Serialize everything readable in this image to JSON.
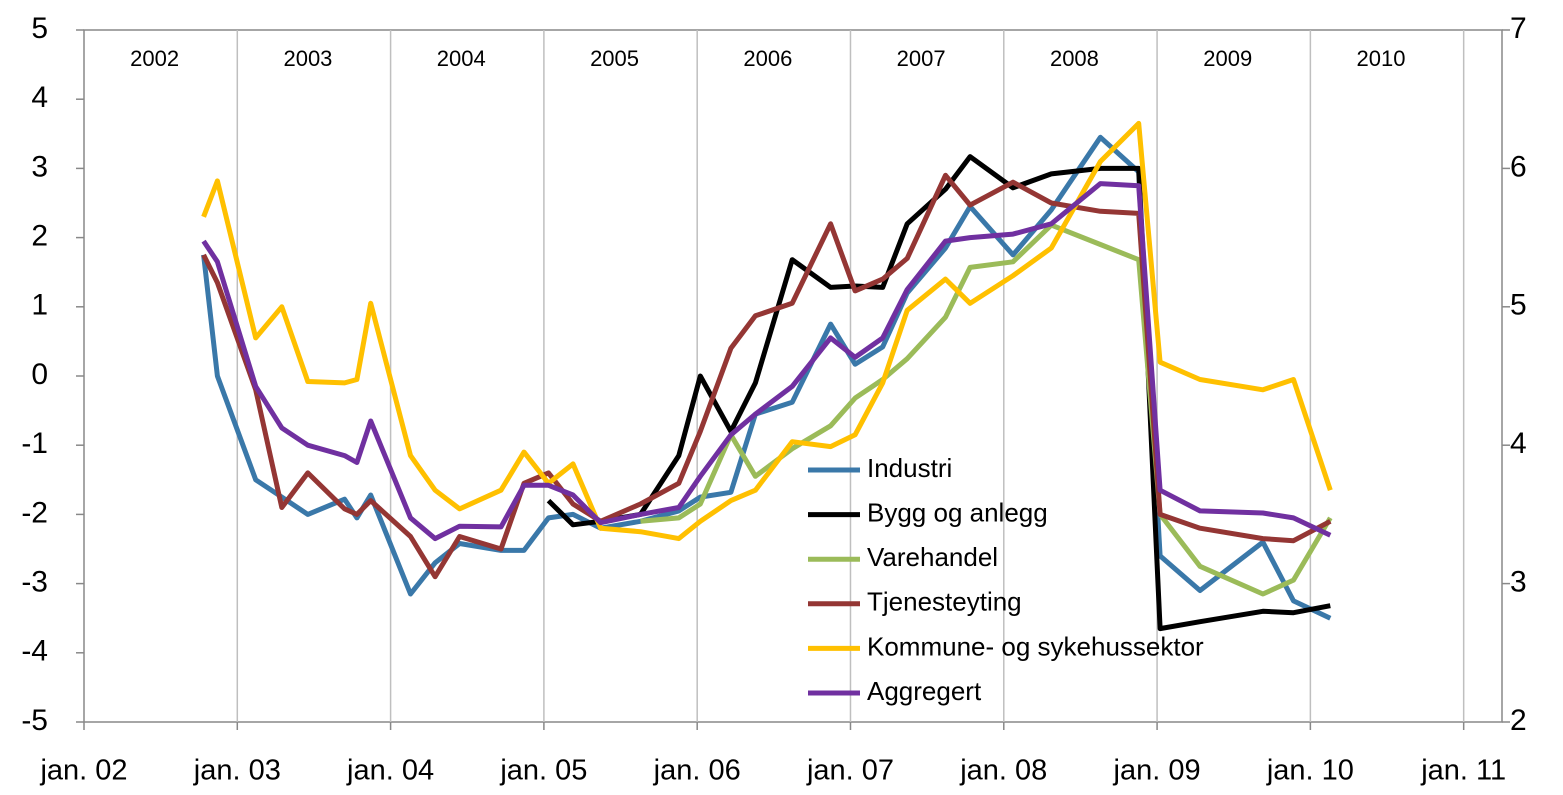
{
  "chart_data": {
    "type": "line",
    "x": [
      2002.78,
      2002.87,
      2003.12,
      2003.29,
      2003.46,
      2003.7,
      2003.78,
      2003.87,
      2004.13,
      2004.29,
      2004.45,
      2004.72,
      2004.87,
      2005.03,
      2005.19,
      2005.37,
      2005.63,
      2005.88,
      2006.02,
      2006.22,
      2006.38,
      2006.62,
      2006.87,
      2007.03,
      2007.21,
      2007.37,
      2007.62,
      2007.78,
      2008.06,
      2008.31,
      2008.63,
      2008.88,
      2009.02,
      2009.28,
      2009.69,
      2009.89,
      2010.13
    ],
    "series": [
      {
        "name": "Industri",
        "color": "#3a78a9",
        "values": [
          1.75,
          0,
          -1.5,
          -1.75,
          -2.0,
          -1.78,
          -2.05,
          -1.72,
          -3.15,
          -2.7,
          -2.42,
          -2.52,
          -2.52,
          -2.05,
          -2.0,
          -2.2,
          -2.1,
          -1.95,
          -1.75,
          -1.68,
          -0.55,
          -0.38,
          0.75,
          0.17,
          0.42,
          1.2,
          1.85,
          2.45,
          1.75,
          2.4,
          3.45,
          2.95,
          -2.6,
          -3.1,
          -2.4,
          -3.25,
          -3.5
        ]
      },
      {
        "name": "Bygg og anlegg",
        "color": "#000000",
        "values": [
          null,
          null,
          null,
          null,
          null,
          null,
          null,
          null,
          null,
          null,
          null,
          null,
          null,
          -1.8,
          -2.15,
          -2.1,
          -2.0,
          -1.15,
          0.0,
          -0.8,
          -0.1,
          1.68,
          1.28,
          1.3,
          1.28,
          2.2,
          2.7,
          3.17,
          2.72,
          2.92,
          3.0,
          3.0,
          -3.65,
          -3.55,
          -3.4,
          -3.42,
          -3.32
        ]
      },
      {
        "name": "Varehandel",
        "color": "#9bbb59",
        "values": [
          null,
          null,
          null,
          null,
          null,
          null,
          null,
          null,
          null,
          null,
          null,
          null,
          null,
          null,
          null,
          null,
          -2.1,
          -2.05,
          -1.85,
          -0.85,
          -1.45,
          -1.05,
          -0.72,
          -0.32,
          -0.05,
          0.25,
          0.85,
          1.57,
          1.65,
          2.18,
          1.9,
          1.68,
          -2.0,
          -2.75,
          -3.15,
          -2.95,
          -2.05
        ]
      },
      {
        "name": "Tjenesteyting",
        "color": "#943634",
        "values": [
          1.75,
          1.35,
          -0.2,
          -1.9,
          -1.4,
          -1.92,
          -2.0,
          -1.8,
          -2.32,
          -2.9,
          -2.32,
          -2.5,
          -1.55,
          -1.4,
          -1.85,
          -2.1,
          -1.85,
          -1.55,
          -0.8,
          0.4,
          0.87,
          1.05,
          2.2,
          1.23,
          1.4,
          1.7,
          2.9,
          2.47,
          2.8,
          2.5,
          2.38,
          2.35,
          -2.0,
          -2.2,
          -2.35,
          -2.38,
          -2.1
        ]
      },
      {
        "name": "Kommune- og sykehussektor",
        "color": "#ffc000",
        "values": [
          2.3,
          2.82,
          0.55,
          1.0,
          -0.08,
          -0.1,
          -0.05,
          1.05,
          -1.15,
          -1.65,
          -1.92,
          -1.65,
          -1.1,
          -1.55,
          -1.27,
          -2.2,
          -2.25,
          -2.35,
          -2.1,
          -1.8,
          -1.65,
          -0.95,
          -1.02,
          -0.85,
          -0.1,
          0.95,
          1.4,
          1.05,
          1.45,
          1.85,
          3.1,
          3.65,
          0.2,
          -0.05,
          -0.2,
          -0.05,
          -1.65
        ]
      },
      {
        "name": "Aggregert",
        "color": "#7030a0",
        "values": [
          1.95,
          1.65,
          -0.15,
          -0.75,
          -1.0,
          -1.15,
          -1.25,
          -0.65,
          -2.05,
          -2.35,
          -2.17,
          -2.18,
          -1.58,
          -1.58,
          -1.72,
          -2.12,
          -2.0,
          -1.9,
          -1.45,
          -0.85,
          -0.55,
          -0.15,
          0.55,
          0.27,
          0.55,
          1.25,
          1.95,
          2.0,
          2.05,
          2.2,
          2.78,
          2.75,
          -1.65,
          -1.95,
          -1.98,
          -2.05,
          -2.3
        ]
      }
    ],
    "xlim": [
      2002,
      2011.25
    ],
    "xticks": [
      {
        "value": 2002,
        "label": "jan. 02"
      },
      {
        "value": 2003,
        "label": "jan. 03"
      },
      {
        "value": 2004,
        "label": "jan. 04"
      },
      {
        "value": 2005,
        "label": "jan. 05"
      },
      {
        "value": 2006,
        "label": "jan. 06"
      },
      {
        "value": 2007,
        "label": "jan. 07"
      },
      {
        "value": 2008,
        "label": "jan. 08"
      },
      {
        "value": 2009,
        "label": "jan. 09"
      },
      {
        "value": 2010,
        "label": "jan. 10"
      },
      {
        "value": 2011,
        "label": "jan. 11"
      }
    ],
    "year_labels": [
      "2002",
      "2003",
      "2004",
      "2005",
      "2006",
      "2007",
      "2008",
      "2009",
      "2010"
    ],
    "ylim": [
      -5,
      5
    ],
    "yticks": [
      -5,
      -4,
      -3,
      -2,
      -1,
      0,
      1,
      2,
      3,
      4,
      5
    ],
    "y2lim": [
      2,
      7
    ],
    "y2ticks": [
      2,
      3,
      4,
      5,
      6,
      7
    ],
    "grid": "x"
  }
}
